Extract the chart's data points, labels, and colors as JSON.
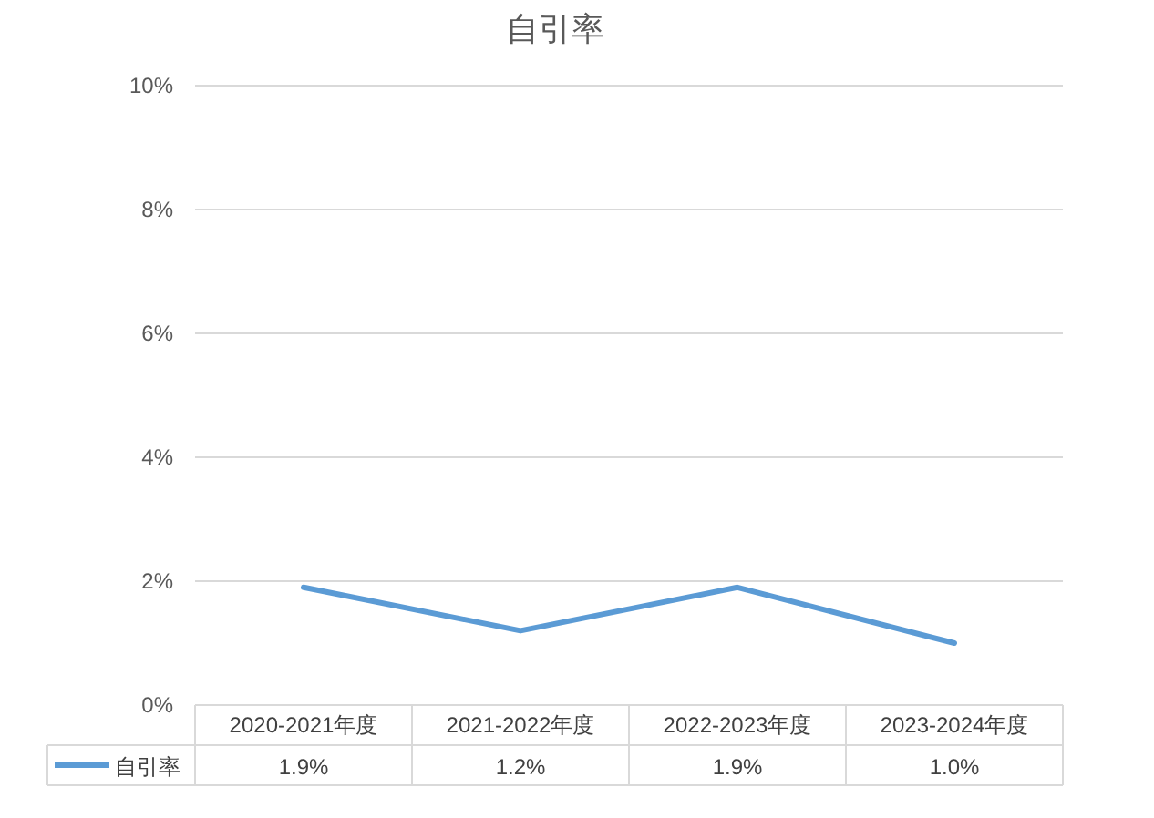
{
  "chart_data": {
    "type": "line",
    "title": "自引率",
    "categories": [
      "2020-2021年度",
      "2021-2022年度",
      "2022-2023年度",
      "2023-2024年度"
    ],
    "series": [
      {
        "name": "自引率",
        "color": "#5b9bd5",
        "values": [
          1.9,
          1.2,
          1.9,
          1.0
        ]
      }
    ],
    "value_labels": [
      "1.9%",
      "1.2%",
      "1.9%",
      "1.0%"
    ],
    "ylim": [
      0,
      10
    ],
    "yticks": [
      {
        "value": 0,
        "label": "0%"
      },
      {
        "value": 2,
        "label": "2%"
      },
      {
        "value": 4,
        "label": "4%"
      },
      {
        "value": 6,
        "label": "6%"
      },
      {
        "value": 8,
        "label": "8%"
      },
      {
        "value": 10,
        "label": "10%"
      }
    ],
    "grid": "y",
    "legend": "bottom",
    "marker": "none",
    "line_style": "solid"
  }
}
